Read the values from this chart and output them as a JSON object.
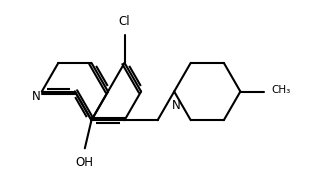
{
  "bg_color": "#ffffff",
  "line_color": "#000000",
  "lw": 1.5,
  "xlim": [
    0,
    10
  ],
  "ylim": [
    0,
    5.56
  ],
  "labels": {
    "N_quinoline": "N",
    "OH": "OH",
    "Cl": "Cl",
    "N_pip": "N",
    "CH3": "CH₃"
  },
  "font_size": 8.5
}
